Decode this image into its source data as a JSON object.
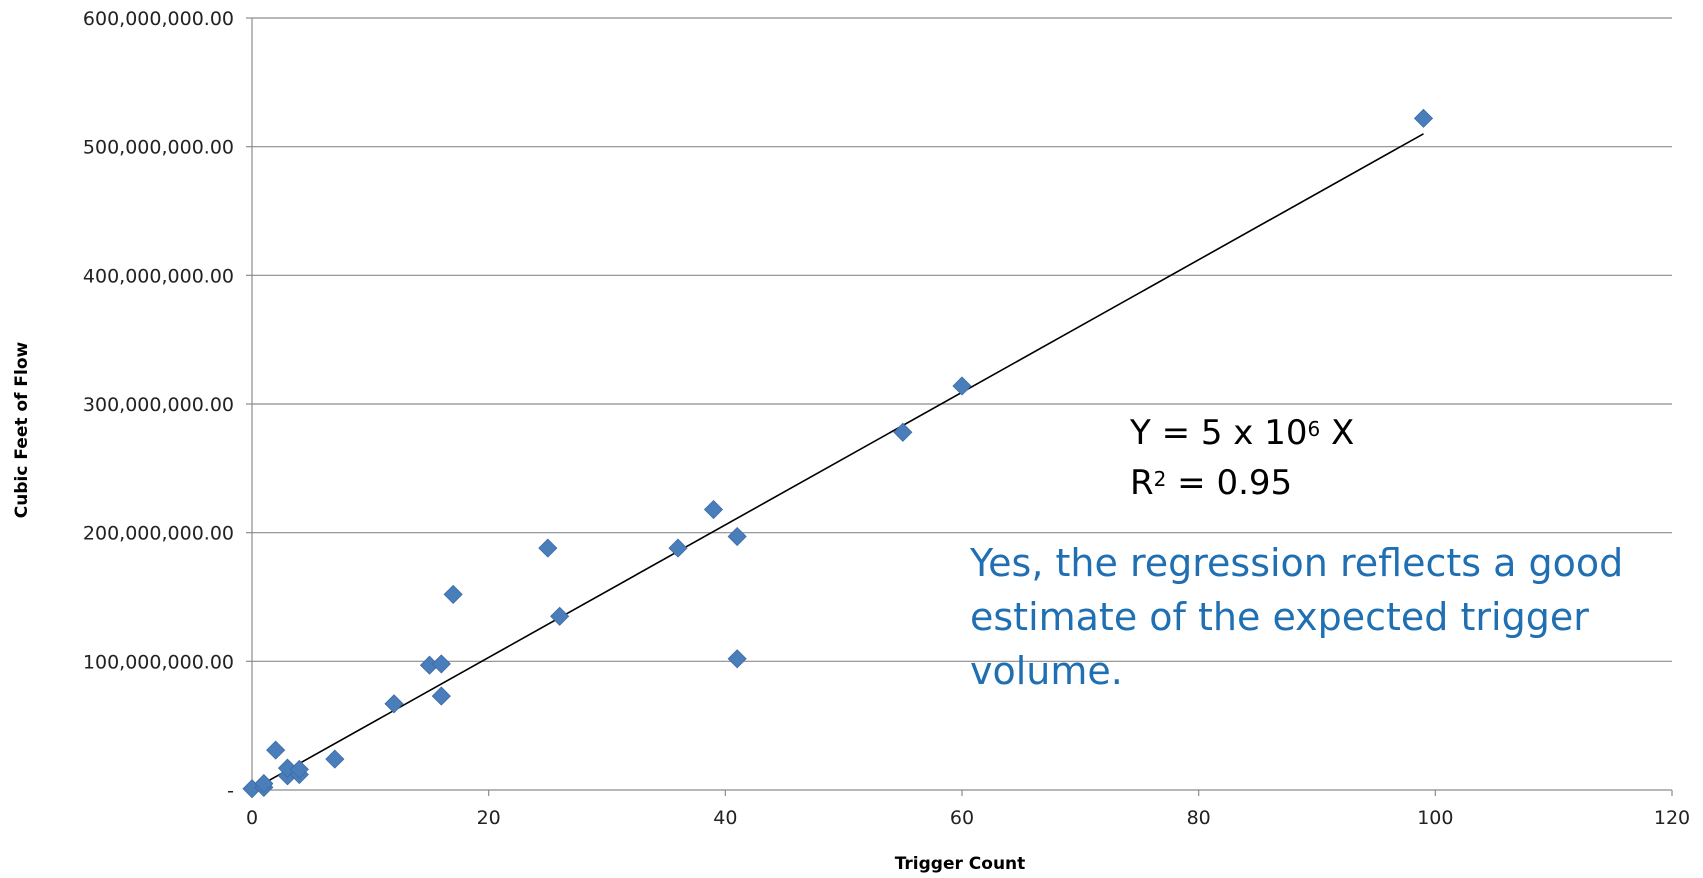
{
  "chart_data": {
    "type": "scatter",
    "xlabel": "Trigger Count",
    "ylabel": "Cubic Feet of Flow",
    "xlim": [
      0,
      120
    ],
    "ylim": [
      0,
      600000000
    ],
    "x_ticks": [
      0,
      20,
      40,
      60,
      80,
      100,
      120
    ],
    "x_tick_labels": [
      "0",
      "20",
      "40",
      "60",
      "80",
      "100",
      "120"
    ],
    "y_ticks": [
      0,
      100000000,
      200000000,
      300000000,
      400000000,
      500000000,
      600000000
    ],
    "y_tick_labels": [
      "-",
      "100,000,000.00",
      "200,000,000.00",
      "300,000,000.00",
      "400,000,000.00",
      "500,000,000.00",
      "600,000,000.00"
    ],
    "grid": "horizontal",
    "marker_color": "#4a7ebb",
    "trendline_color": "#000000",
    "points": [
      {
        "x": 0,
        "y": 1000000
      },
      {
        "x": 1,
        "y": 2000000
      },
      {
        "x": 1,
        "y": 5000000
      },
      {
        "x": 2,
        "y": 31000000
      },
      {
        "x": 3,
        "y": 11000000
      },
      {
        "x": 3,
        "y": 17000000
      },
      {
        "x": 4,
        "y": 12000000
      },
      {
        "x": 4,
        "y": 16000000
      },
      {
        "x": 7,
        "y": 24000000
      },
      {
        "x": 12,
        "y": 67000000
      },
      {
        "x": 15,
        "y": 97000000
      },
      {
        "x": 16,
        "y": 98000000
      },
      {
        "x": 16,
        "y": 73000000
      },
      {
        "x": 17,
        "y": 152000000
      },
      {
        "x": 25,
        "y": 188000000
      },
      {
        "x": 26,
        "y": 135000000
      },
      {
        "x": 36,
        "y": 188000000
      },
      {
        "x": 39,
        "y": 218000000
      },
      {
        "x": 41,
        "y": 197000000
      },
      {
        "x": 41,
        "y": 102000000
      },
      {
        "x": 55,
        "y": 278000000
      },
      {
        "x": 60,
        "y": 314000000
      },
      {
        "x": 99,
        "y": 522000000
      }
    ],
    "trendline": {
      "x": [
        0,
        99
      ],
      "y": [
        0,
        510000000
      ]
    }
  },
  "annotation": {
    "equation_prefix": "Y = 5 x 10",
    "equation_exponent": "6",
    "equation_suffix": " X",
    "r_prefix": "R",
    "r_exponent": "2",
    "r_suffix": " = 0.95",
    "note": "Yes, the regression reflects a good estimate of the expected trigger volume."
  }
}
